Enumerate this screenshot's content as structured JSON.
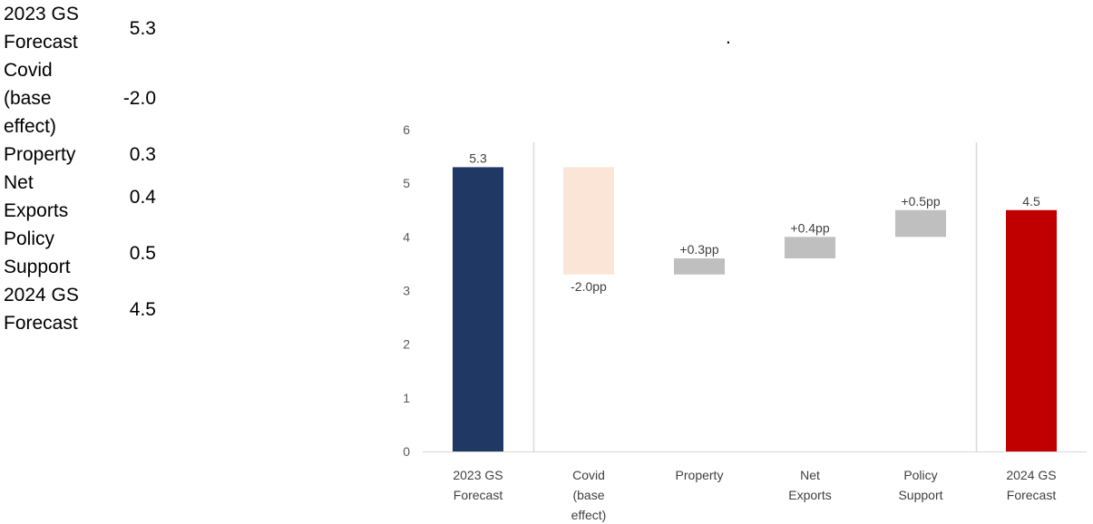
{
  "table": {
    "rows": [
      {
        "label_lines": [
          "2023 GS",
          "Forecast"
        ],
        "value": "5.3"
      },
      {
        "label_lines": [
          "Covid",
          "(base",
          "effect)"
        ],
        "value": "-2.0"
      },
      {
        "label_lines": [
          "Property"
        ],
        "value": "0.3"
      },
      {
        "label_lines": [
          "Net",
          "Exports"
        ],
        "value": "0.4"
      },
      {
        "label_lines": [
          "Policy",
          "Support"
        ],
        "value": "0.5"
      },
      {
        "label_lines": [
          "2024 GS",
          "Forecast"
        ],
        "value": "4.5"
      }
    ]
  },
  "header": {
    "dot": "."
  },
  "chart_data": {
    "type": "bar",
    "subtype": "waterfall",
    "categories": [
      [
        "2023 GS",
        "Forecast"
      ],
      [
        "Covid",
        "(base",
        "effect)"
      ],
      [
        "Property"
      ],
      [
        "Net",
        "Exports"
      ],
      [
        "Policy",
        "Support"
      ],
      [
        "2024 GS",
        "Forecast"
      ]
    ],
    "bars": [
      {
        "bottom": 0,
        "top": 5.3,
        "kind": "total",
        "label": "5.3",
        "label_pos": "above",
        "color": "#203864"
      },
      {
        "bottom": 3.3,
        "top": 5.3,
        "kind": "decrease",
        "label": "-2.0pp",
        "label_pos": "below",
        "color": "#FBE5D6"
      },
      {
        "bottom": 3.3,
        "top": 3.6,
        "kind": "increase",
        "label": "+0.3pp",
        "label_pos": "above",
        "color": "#BFBFBF"
      },
      {
        "bottom": 3.6,
        "top": 4.0,
        "kind": "increase",
        "label": "+0.4pp",
        "label_pos": "above",
        "color": "#BFBFBF"
      },
      {
        "bottom": 4.0,
        "top": 4.5,
        "kind": "increase",
        "label": "+0.5pp",
        "label_pos": "above",
        "color": "#BFBFBF"
      },
      {
        "bottom": 0,
        "top": 4.5,
        "kind": "total",
        "label": "4.5",
        "label_pos": "above",
        "color": "#C00000"
      }
    ],
    "ylim": [
      0,
      6
    ],
    "yticks": [
      0,
      1,
      2,
      3,
      4,
      5,
      6
    ],
    "separators_after": [
      0,
      4
    ],
    "grid": false,
    "title": "",
    "xlabel": "",
    "ylabel": ""
  }
}
